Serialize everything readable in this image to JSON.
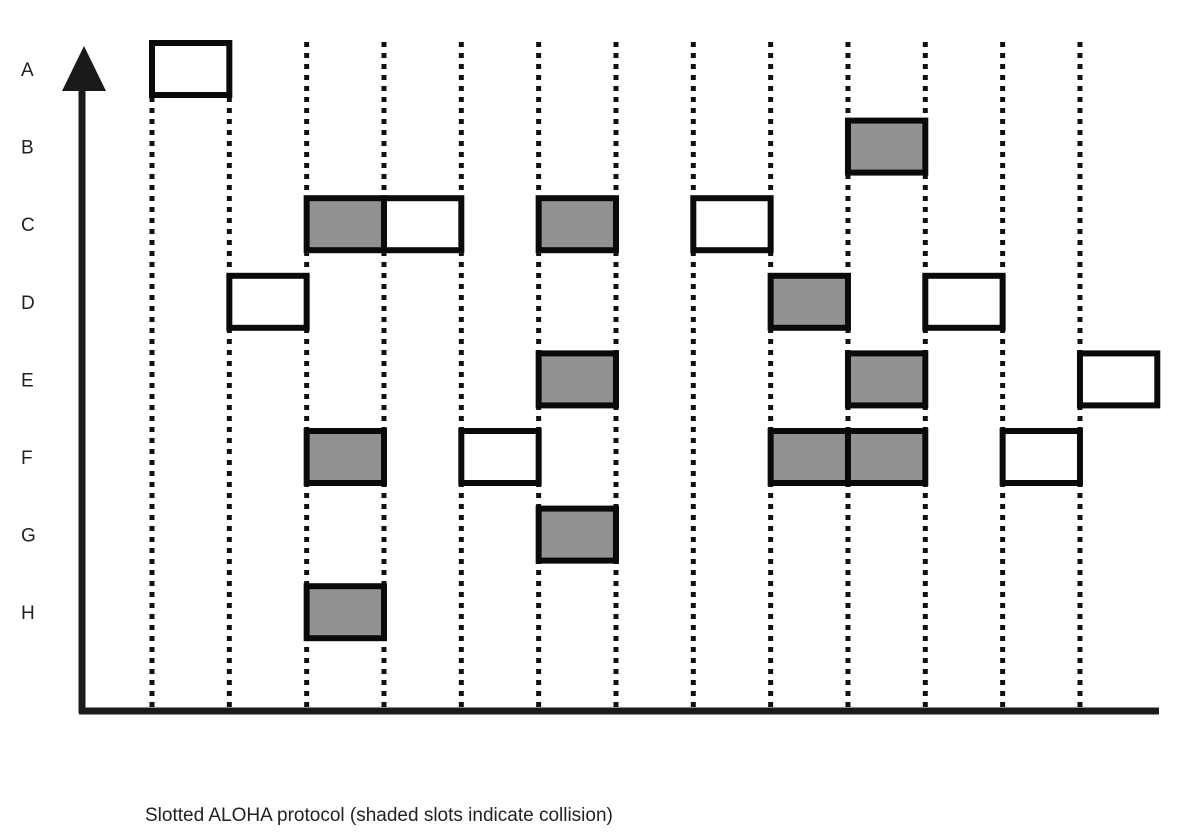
{
  "title": "Slotted ALOHA protocol (shaded slots indicate collision)",
  "stations": [
    "A",
    "B",
    "C",
    "D",
    "E",
    "F",
    "G",
    "H"
  ],
  "slot_count": 13,
  "colors": {
    "collision_fill": "#929292",
    "success_fill": "#ffffff",
    "stroke": "#0a0a0a",
    "axis": "#1a1a1a"
  },
  "transmissions": [
    {
      "station": "A",
      "slot": 0,
      "collision": false
    },
    {
      "station": "B",
      "slot": 9,
      "collision": true
    },
    {
      "station": "C",
      "slot": 2,
      "collision": true
    },
    {
      "station": "C",
      "slot": 3,
      "collision": false
    },
    {
      "station": "C",
      "slot": 5,
      "collision": true
    },
    {
      "station": "C",
      "slot": 7,
      "collision": false
    },
    {
      "station": "D",
      "slot": 1,
      "collision": false
    },
    {
      "station": "D",
      "slot": 8,
      "collision": true
    },
    {
      "station": "D",
      "slot": 10,
      "collision": false
    },
    {
      "station": "E",
      "slot": 5,
      "collision": true
    },
    {
      "station": "E",
      "slot": 9,
      "collision": true
    },
    {
      "station": "E",
      "slot": 12,
      "collision": false
    },
    {
      "station": "F",
      "slot": 2,
      "collision": true
    },
    {
      "station": "F",
      "slot": 4,
      "collision": false
    },
    {
      "station": "F",
      "slot": 8,
      "collision": true
    },
    {
      "station": "F",
      "slot": 9,
      "collision": true
    },
    {
      "station": "F",
      "slot": 11,
      "collision": false
    },
    {
      "station": "G",
      "slot": 5,
      "collision": true
    },
    {
      "station": "H",
      "slot": 2,
      "collision": true
    }
  ]
}
